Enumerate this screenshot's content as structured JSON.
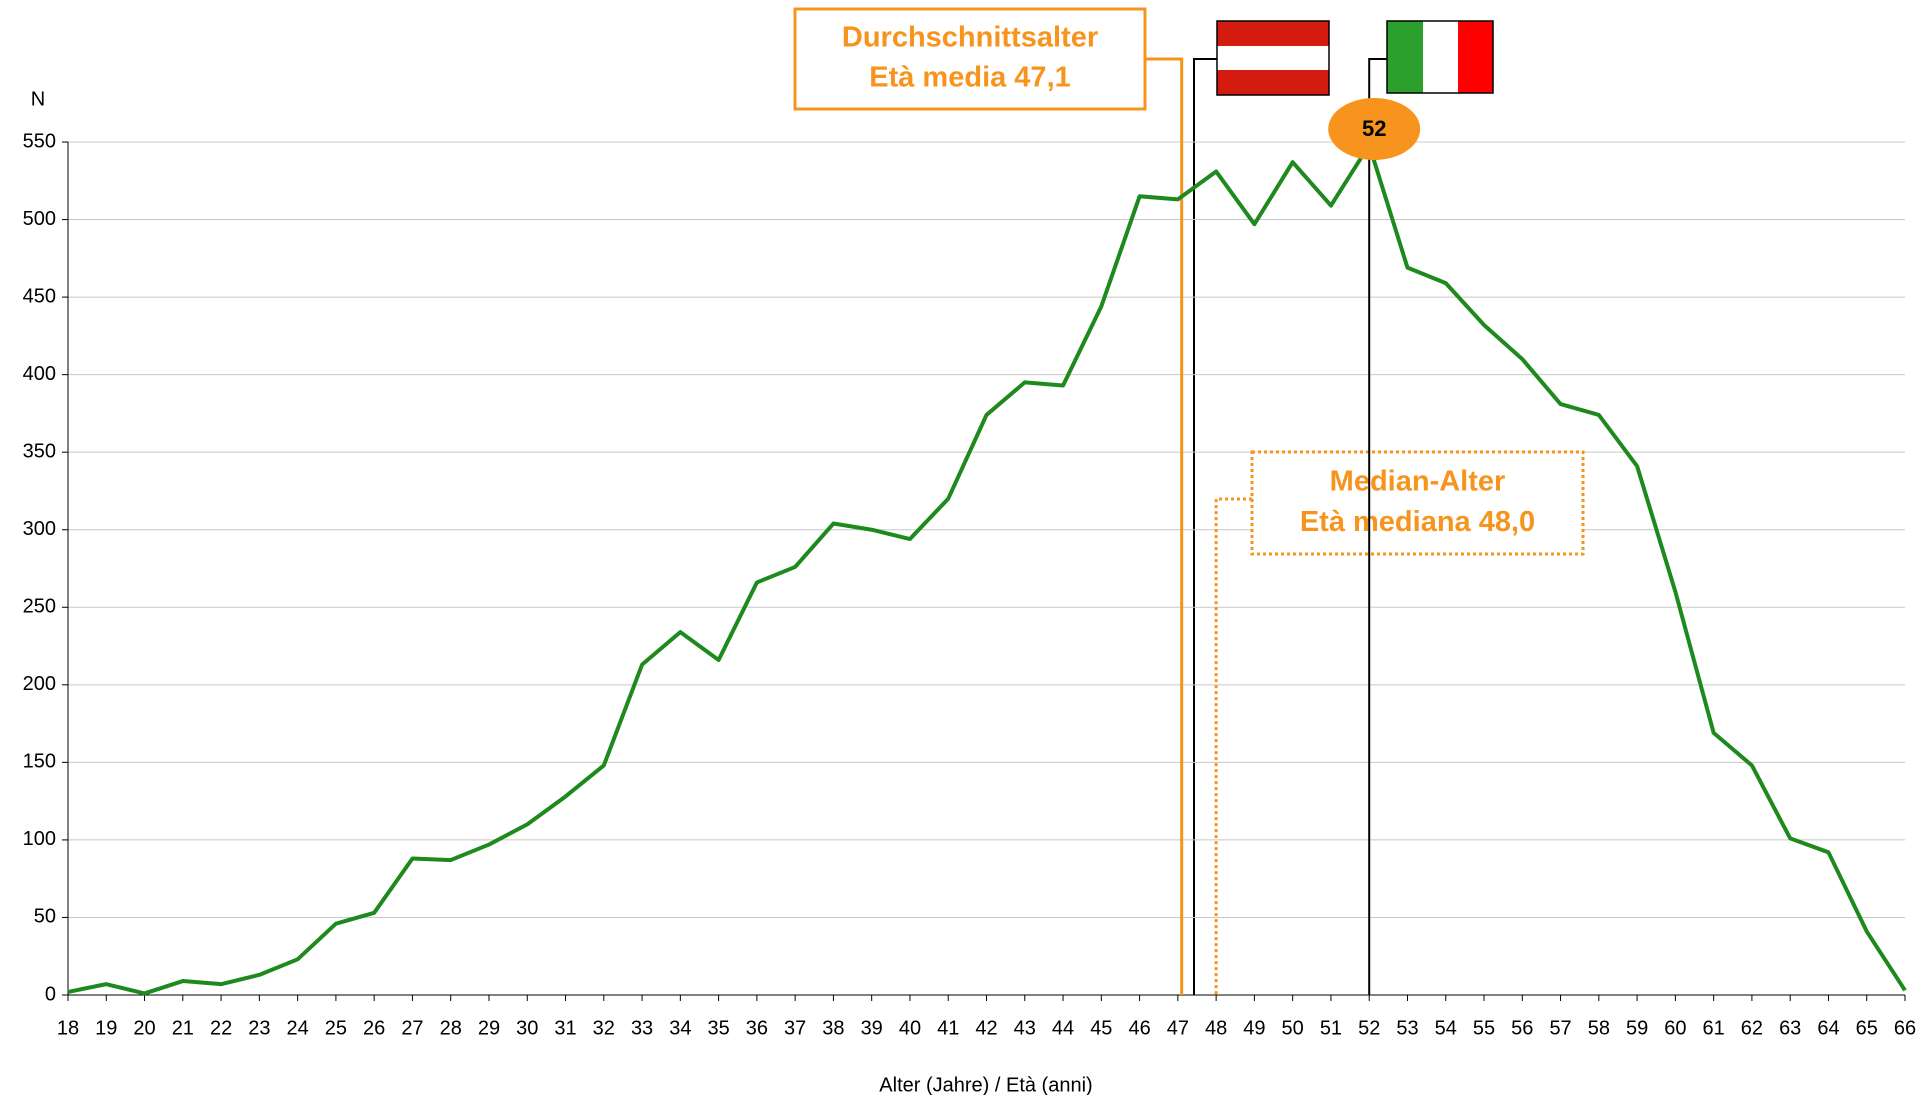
{
  "chart_data": {
    "type": "line",
    "x_label": "Alter (Jahre) / Età (anni)",
    "y_label": "N",
    "x": [
      18,
      19,
      20,
      21,
      22,
      23,
      24,
      25,
      26,
      27,
      28,
      29,
      30,
      31,
      32,
      33,
      34,
      35,
      36,
      37,
      38,
      39,
      40,
      41,
      42,
      43,
      44,
      45,
      46,
      47,
      48,
      49,
      50,
      51,
      52,
      53,
      54,
      55,
      56,
      57,
      58,
      59,
      60,
      61,
      62,
      63,
      64,
      65,
      66
    ],
    "series": [
      {
        "name": "N",
        "color": "#1e8a1e",
        "values": [
          2,
          7,
          1,
          9,
          7,
          13,
          23,
          46,
          53,
          88,
          87,
          97,
          110,
          128,
          148,
          213,
          234,
          216,
          266,
          276,
          304,
          300,
          294,
          320,
          374,
          395,
          393,
          444,
          515,
          513,
          531,
          497,
          537,
          509,
          548,
          469,
          459,
          432,
          410,
          381,
          374,
          341,
          260,
          169,
          148,
          101,
          92,
          41,
          3
        ]
      }
    ],
    "xlim": [
      18,
      66
    ],
    "xticks": [
      18,
      19,
      20,
      21,
      22,
      23,
      24,
      25,
      26,
      27,
      28,
      29,
      30,
      31,
      32,
      33,
      34,
      35,
      36,
      37,
      38,
      39,
      40,
      41,
      42,
      43,
      44,
      45,
      46,
      47,
      48,
      49,
      50,
      51,
      52,
      53,
      54,
      55,
      56,
      57,
      58,
      59,
      60,
      61,
      62,
      63,
      64,
      65,
      66
    ],
    "ylim": [
      0,
      550
    ],
    "yticks": [
      0,
      50,
      100,
      150,
      200,
      250,
      300,
      350,
      400,
      450,
      500,
      550
    ],
    "grid": true,
    "annotations": [
      {
        "title": "Durchschnittsalter",
        "label": "Età media 47,1",
        "value": 47.1,
        "style": "solid",
        "color": "#f7941d"
      },
      {
        "title": "Median-Alter",
        "label": "Età mediana 48,0",
        "value": 48.0,
        "style": "dotted",
        "color": "#f7941d"
      }
    ],
    "peak_label": 52
  }
}
